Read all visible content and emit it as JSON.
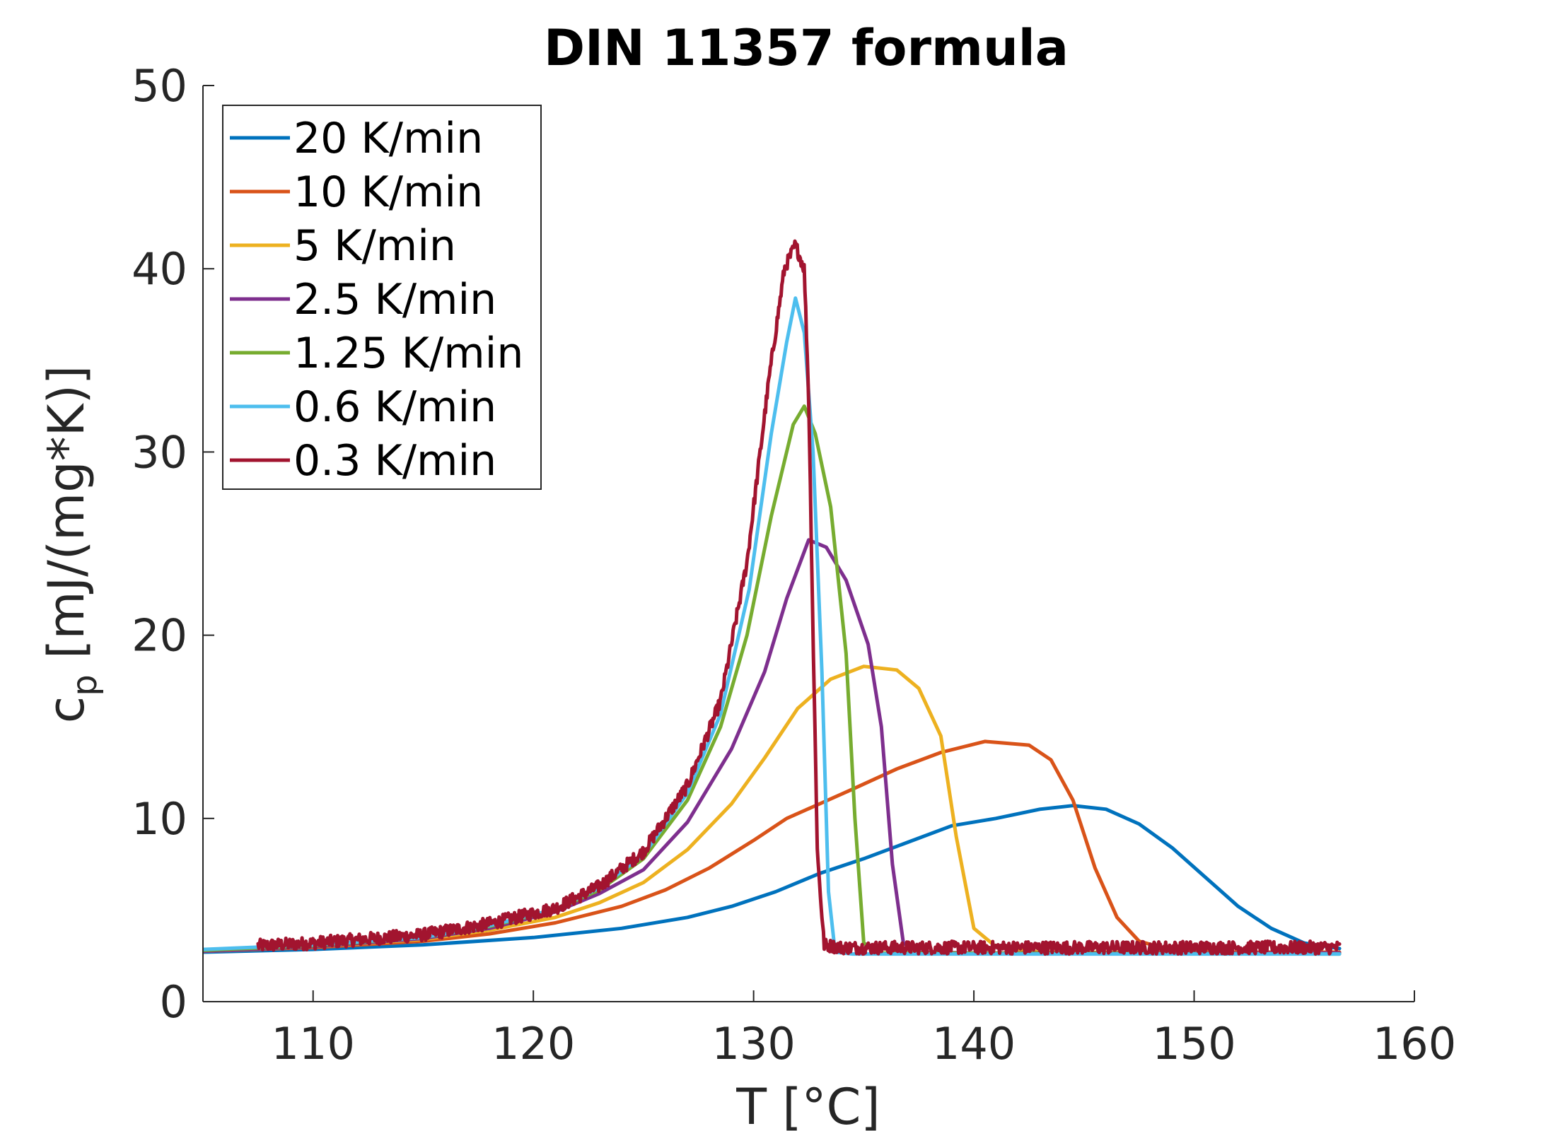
{
  "chart_data": {
    "type": "line",
    "title": "DIN 11357 formula",
    "xlabel": "T [°C]",
    "ylabel_main": "c",
    "ylabel_sub": "p",
    "ylabel_rest": " [mJ/(mg*K)]",
    "xlim": [
      105,
      160
    ],
    "ylim": [
      0,
      50
    ],
    "xticks": [
      110,
      120,
      130,
      140,
      150,
      160
    ],
    "yticks": [
      0,
      10,
      20,
      30,
      40,
      50
    ],
    "grid": false,
    "legend_position": "top-left",
    "series": [
      {
        "name": "20 K/min",
        "color": "#0072BD",
        "points": [
          [
            105,
            2.7
          ],
          [
            110,
            2.85
          ],
          [
            115,
            3.1
          ],
          [
            120,
            3.5
          ],
          [
            124,
            4.0
          ],
          [
            127,
            4.6
          ],
          [
            129,
            5.2
          ],
          [
            131,
            6.0
          ],
          [
            133,
            7.0
          ],
          [
            135,
            7.8
          ],
          [
            137,
            8.7
          ],
          [
            139,
            9.6
          ],
          [
            141,
            10.0
          ],
          [
            143,
            10.5
          ],
          [
            144.5,
            10.7
          ],
          [
            146,
            10.5
          ],
          [
            147.5,
            9.7
          ],
          [
            149,
            8.4
          ],
          [
            150.5,
            6.8
          ],
          [
            152,
            5.2
          ],
          [
            153.5,
            4.0
          ],
          [
            155,
            3.2
          ],
          [
            156.6,
            2.9
          ]
        ]
      },
      {
        "name": "10 K/min",
        "color": "#D95319",
        "points": [
          [
            105,
            2.75
          ],
          [
            110,
            2.95
          ],
          [
            115,
            3.3
          ],
          [
            118,
            3.7
          ],
          [
            121,
            4.3
          ],
          [
            124,
            5.2
          ],
          [
            126,
            6.1
          ],
          [
            128,
            7.3
          ],
          [
            130,
            8.8
          ],
          [
            131.5,
            10.0
          ],
          [
            133,
            10.8
          ],
          [
            134.5,
            11.6
          ],
          [
            136.5,
            12.7
          ],
          [
            138.5,
            13.6
          ],
          [
            140.5,
            14.2
          ],
          [
            142.5,
            14.0
          ],
          [
            143.5,
            13.2
          ],
          [
            144.5,
            11.0
          ],
          [
            145.5,
            7.3
          ],
          [
            146.5,
            4.6
          ],
          [
            147.5,
            3.3
          ],
          [
            149,
            2.8
          ],
          [
            152,
            2.7
          ],
          [
            156.6,
            2.7
          ]
        ]
      },
      {
        "name": "5 K/min",
        "color": "#EDB120",
        "points": [
          [
            105,
            2.75
          ],
          [
            110,
            3.0
          ],
          [
            115,
            3.4
          ],
          [
            118,
            3.9
          ],
          [
            121,
            4.6
          ],
          [
            123,
            5.4
          ],
          [
            125,
            6.5
          ],
          [
            127,
            8.3
          ],
          [
            129,
            10.8
          ],
          [
            130.5,
            13.3
          ],
          [
            132,
            16.0
          ],
          [
            133.5,
            17.6
          ],
          [
            135,
            18.3
          ],
          [
            136.5,
            18.1
          ],
          [
            137.5,
            17.1
          ],
          [
            138.5,
            14.5
          ],
          [
            139.2,
            9.0
          ],
          [
            140,
            4.0
          ],
          [
            141,
            3.0
          ],
          [
            143,
            2.7
          ],
          [
            156.6,
            2.65
          ]
        ]
      },
      {
        "name": "2.5 K/min",
        "color": "#7E2F8E",
        "points": [
          [
            105,
            2.75
          ],
          [
            110,
            3.0
          ],
          [
            115,
            3.45
          ],
          [
            118,
            4.0
          ],
          [
            121,
            4.9
          ],
          [
            123,
            5.9
          ],
          [
            125,
            7.2
          ],
          [
            127,
            9.8
          ],
          [
            129,
            13.8
          ],
          [
            130.5,
            18.0
          ],
          [
            131.5,
            22.0
          ],
          [
            132.5,
            25.2
          ],
          [
            133.3,
            24.8
          ],
          [
            134.2,
            23.0
          ],
          [
            135.2,
            19.5
          ],
          [
            135.8,
            15.0
          ],
          [
            136.3,
            7.5
          ],
          [
            136.8,
            3.2
          ],
          [
            137.5,
            2.7
          ],
          [
            140,
            2.65
          ],
          [
            156.6,
            2.65
          ]
        ]
      },
      {
        "name": "1.25 K/min",
        "color": "#77AC30",
        "points": [
          [
            105,
            2.8
          ],
          [
            110,
            3.05
          ],
          [
            115,
            3.5
          ],
          [
            118,
            4.1
          ],
          [
            121,
            5.0
          ],
          [
            123,
            6.1
          ],
          [
            125,
            7.8
          ],
          [
            127,
            11.0
          ],
          [
            128.5,
            15.0
          ],
          [
            129.7,
            20.0
          ],
          [
            130.8,
            26.5
          ],
          [
            131.8,
            31.5
          ],
          [
            132.3,
            32.5
          ],
          [
            132.8,
            31.0
          ],
          [
            133.5,
            27.0
          ],
          [
            134.2,
            19.0
          ],
          [
            134.6,
            10.0
          ],
          [
            135,
            3.2
          ],
          [
            135.7,
            2.65
          ],
          [
            156.6,
            2.6
          ]
        ]
      },
      {
        "name": "0.6 K/min",
        "color": "#4DBEEE",
        "points": [
          [
            105,
            2.85
          ],
          [
            110,
            3.1
          ],
          [
            115,
            3.5
          ],
          [
            118,
            4.15
          ],
          [
            121,
            5.05
          ],
          [
            123,
            6.2
          ],
          [
            125,
            8.0
          ],
          [
            127,
            11.4
          ],
          [
            128.5,
            15.7
          ],
          [
            129.8,
            22.5
          ],
          [
            130.8,
            31.0
          ],
          [
            131.5,
            36.0
          ],
          [
            131.9,
            38.4
          ],
          [
            132.3,
            36.5
          ],
          [
            132.7,
            30.0
          ],
          [
            133.1,
            18.0
          ],
          [
            133.4,
            6.0
          ],
          [
            133.7,
            2.7
          ],
          [
            134.5,
            2.6
          ],
          [
            156.6,
            2.6
          ]
        ]
      },
      {
        "name": "0.3 K/min",
        "color": "#A2142F",
        "noise": 0.35,
        "points": [
          [
            107.5,
            3.05
          ],
          [
            110,
            3.2
          ],
          [
            115,
            3.65
          ],
          [
            118,
            4.25
          ],
          [
            121,
            5.1
          ],
          [
            123,
            6.3
          ],
          [
            125,
            8.2
          ],
          [
            127,
            11.8
          ],
          [
            128.5,
            16.4
          ],
          [
            129.7,
            24.0
          ],
          [
            130.7,
            34.0
          ],
          [
            131.4,
            40.0
          ],
          [
            131.9,
            41.3
          ],
          [
            132.3,
            40.0
          ],
          [
            132.5,
            33.0
          ],
          [
            132.7,
            20.0
          ],
          [
            132.9,
            8.0
          ],
          [
            133.2,
            3.1
          ],
          [
            134,
            2.95
          ],
          [
            156.6,
            2.95
          ]
        ]
      }
    ]
  }
}
